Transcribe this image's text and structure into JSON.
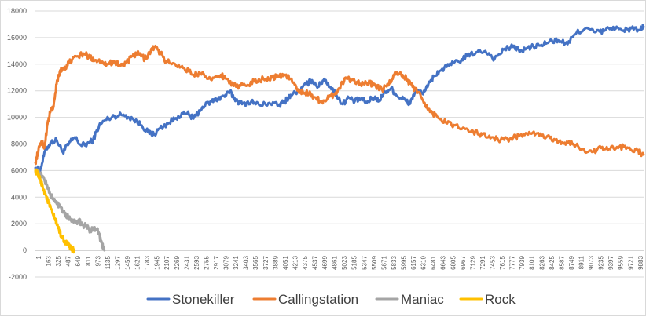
{
  "chart_data": {
    "type": "line",
    "title": "",
    "xlabel": "",
    "ylabel": "",
    "xlim": [
      1,
      10000
    ],
    "ylim": [
      -2000,
      18000
    ],
    "y_ticks": [
      -2000,
      0,
      2000,
      4000,
      6000,
      8000,
      10000,
      12000,
      14000,
      16000,
      18000
    ],
    "y_tick_labels": [
      "-2000",
      "0",
      "2000",
      "4000",
      "6000",
      "8000",
      "10000",
      "12000",
      "14000",
      "16000",
      "18000"
    ],
    "x_tick_labels": [
      "1",
      "163",
      "325",
      "487",
      "649",
      "811",
      "973",
      "1135",
      "1297",
      "1459",
      "1621",
      "1783",
      "1945",
      "2107",
      "2269",
      "2431",
      "2593",
      "2755",
      "2917",
      "3079",
      "3241",
      "3403",
      "3565",
      "3727",
      "3889",
      "4051",
      "4213",
      "4375",
      "4537",
      "4699",
      "4861",
      "5023",
      "5185",
      "5347",
      "5509",
      "5671",
      "5833",
      "5995",
      "6157",
      "6319",
      "6481",
      "6643",
      "6805",
      "6967",
      "7129",
      "7291",
      "7453",
      "7615",
      "7777",
      "7939",
      "8101",
      "8263",
      "8425",
      "8587",
      "8749",
      "8911",
      "9073",
      "9235",
      "9397",
      "9559",
      "9721",
      "9883"
    ],
    "grid": "horizontal",
    "legend": "bottom",
    "series": [
      {
        "name": "Stonekiller",
        "color": "#4472C4",
        "x": [
          1,
          80,
          160,
          250,
          350,
          450,
          550,
          650,
          750,
          850,
          950,
          1050,
          1150,
          1300,
          1450,
          1600,
          1750,
          1850,
          1950,
          2050,
          2200,
          2350,
          2500,
          2600,
          2750,
          2900,
          3000,
          3100,
          3200,
          3300,
          3400,
          3550,
          3700,
          3850,
          4000,
          4100,
          4200,
          4350,
          4450,
          4550,
          4650,
          4750,
          4850,
          4950,
          5050,
          5150,
          5250,
          5350,
          5450,
          5550,
          5650,
          5750,
          5850,
          5950,
          6050,
          6150,
          6250,
          6350,
          6450,
          6550,
          6650,
          6800,
          6950,
          7100,
          7250,
          7400,
          7550,
          7700,
          7850,
          8000,
          8150,
          8300,
          8450,
          8600,
          8750,
          8900,
          9050,
          9200,
          9350,
          9500,
          9650,
          9800,
          9950,
          10000
        ],
        "values": [
          6200,
          6000,
          7500,
          8100,
          8300,
          7400,
          8000,
          8500,
          7900,
          8000,
          8300,
          9400,
          9800,
          10100,
          10200,
          9900,
          9400,
          8900,
          8700,
          9200,
          9600,
          10100,
          10300,
          9900,
          10800,
          11200,
          11400,
          11600,
          11900,
          11300,
          11000,
          11200,
          10900,
          11100,
          10900,
          11200,
          11700,
          12000,
          12500,
          12800,
          12300,
          12900,
          12300,
          11700,
          11000,
          11500,
          11200,
          11400,
          11100,
          11500,
          11300,
          11900,
          12200,
          11600,
          11400,
          11000,
          12000,
          11800,
          12300,
          13100,
          13500,
          13900,
          14200,
          14600,
          14900,
          15000,
          14400,
          15100,
          15300,
          15000,
          15300,
          15400,
          15700,
          15800,
          15500,
          16400,
          16700,
          16400,
          16500,
          16800,
          16500,
          16700,
          16600,
          16800
        ]
      },
      {
        "name": "Callingstation",
        "color": "#ED7D31",
        "x": [
          1,
          50,
          100,
          150,
          200,
          250,
          300,
          350,
          400,
          450,
          500,
          550,
          600,
          700,
          800,
          900,
          1000,
          1100,
          1200,
          1300,
          1400,
          1500,
          1600,
          1700,
          1800,
          1900,
          1950,
          2050,
          2150,
          2300,
          2450,
          2600,
          2750,
          2900,
          3050,
          3150,
          3300,
          3450,
          3600,
          3750,
          3900,
          4000,
          4100,
          4200,
          4300,
          4400,
          4500,
          4600,
          4700,
          4800,
          4900,
          5000,
          5100,
          5200,
          5300,
          5400,
          5500,
          5600,
          5700,
          5800,
          5900,
          6000,
          6100,
          6200,
          6300,
          6400,
          6500,
          6600,
          6750,
          6900,
          7050,
          7200,
          7350,
          7500,
          7650,
          7800,
          7950,
          8100,
          8250,
          8400,
          8550,
          8700,
          8850,
          9000,
          9150,
          9300,
          9450,
          9600,
          9750,
          9900,
          10000
        ],
        "values": [
          6600,
          7500,
          8200,
          7800,
          9500,
          10500,
          10800,
          12500,
          13400,
          13700,
          13800,
          14100,
          14300,
          14600,
          14800,
          14500,
          14300,
          14200,
          14000,
          14200,
          13900,
          14100,
          14600,
          14800,
          14400,
          15000,
          15300,
          14900,
          14200,
          14000,
          13700,
          13200,
          13400,
          12800,
          13200,
          12900,
          12300,
          12400,
          12700,
          12900,
          13000,
          13100,
          13200,
          12900,
          12100,
          11900,
          11800,
          11500,
          11200,
          11400,
          11700,
          12200,
          13000,
          12800,
          12700,
          12500,
          12600,
          12300,
          12100,
          12400,
          13200,
          13400,
          12900,
          12300,
          11900,
          11100,
          10400,
          10100,
          9600,
          9400,
          9200,
          8900,
          8700,
          8500,
          8300,
          8400,
          8600,
          8700,
          8800,
          8500,
          8300,
          8100,
          8000,
          7600,
          7400,
          7700,
          7600,
          7800,
          7700,
          7500,
          7200
        ]
      },
      {
        "name": "Maniac",
        "color": "#A5A5A5",
        "x": [
          1,
          60,
          120,
          180,
          240,
          300,
          360,
          420,
          480,
          540,
          600,
          660,
          720,
          780,
          840,
          900,
          960,
          1020,
          1060,
          1100,
          1135
        ],
        "values": [
          6000,
          5800,
          5600,
          5000,
          4300,
          3800,
          3500,
          3300,
          2800,
          2500,
          2300,
          2100,
          2200,
          1900,
          1800,
          1500,
          1700,
          1600,
          1000,
          400,
          0
        ]
      },
      {
        "name": "Rock",
        "color": "#FFC000",
        "x": [
          1,
          40,
          80,
          120,
          160,
          200,
          240,
          280,
          320,
          360,
          400,
          440,
          480,
          520,
          560,
          600,
          640
        ],
        "values": [
          6000,
          5700,
          5300,
          4800,
          4300,
          3800,
          3300,
          2800,
          2400,
          1900,
          1400,
          1000,
          700,
          500,
          300,
          100,
          0
        ]
      }
    ]
  }
}
